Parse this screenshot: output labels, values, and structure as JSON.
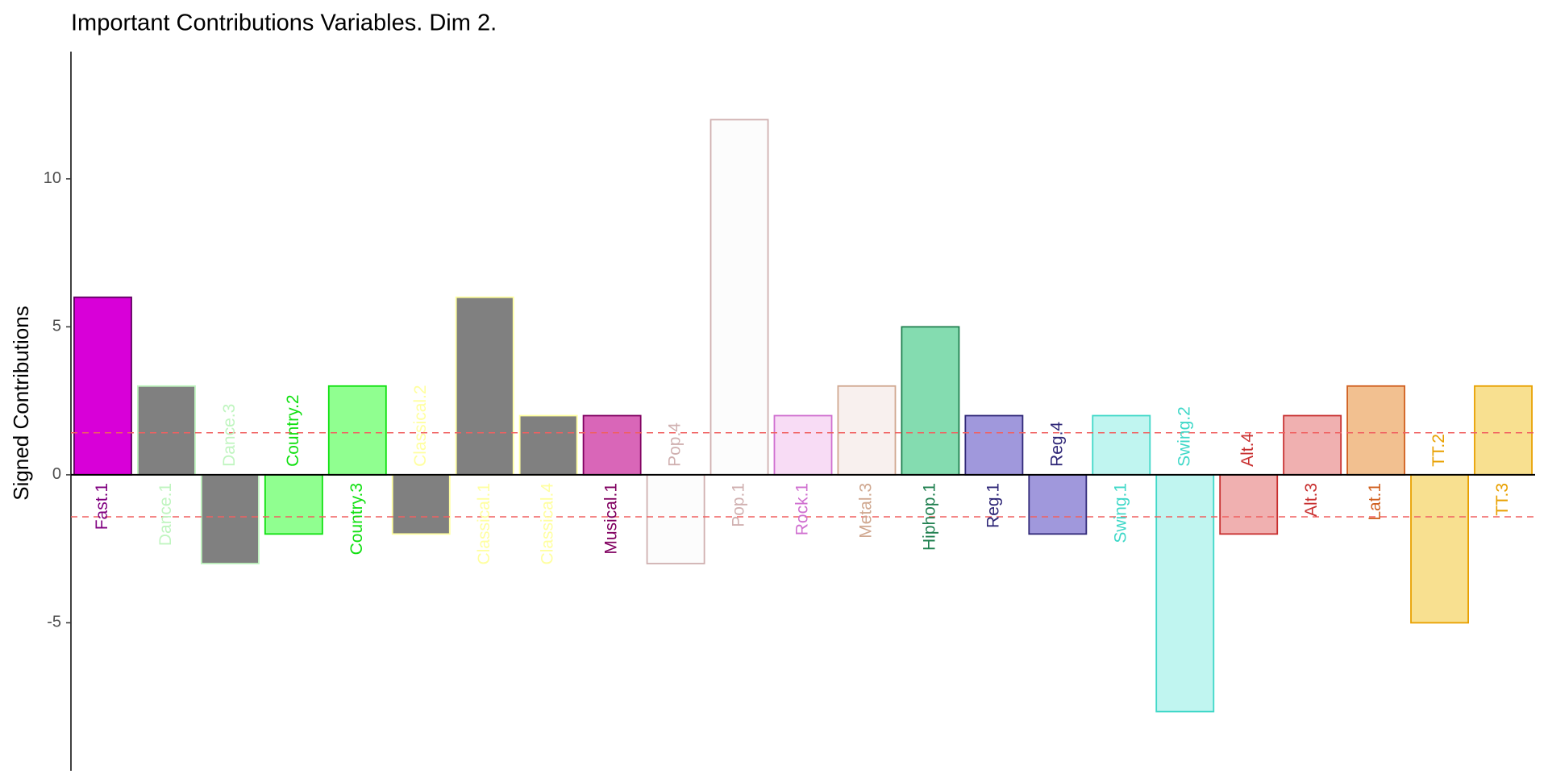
{
  "chart_data": {
    "type": "bar",
    "title": "Important Contributions Variables. Dim 2.",
    "y_label": "Signed Contributions",
    "categories": [
      "Fast.1",
      "Dance.1",
      "Dance.3",
      "Country.2",
      "Country.3",
      "Classical.2",
      "Classical.1",
      "Classical.4",
      "Musical.1",
      "Pop.4",
      "Pop.1",
      "Rock.1",
      "Metal.3",
      "Hiphop.1",
      "Reg.1",
      "Reg.4",
      "Swing.1",
      "Swing.2",
      "Alt.4",
      "Alt.3",
      "Lat.1",
      "TT.2",
      "TT.3"
    ],
    "values": [
      6,
      3,
      -3,
      -2,
      3,
      -2,
      6,
      2,
      2,
      -3,
      12,
      2,
      3,
      5,
      2,
      -2,
      2,
      -8,
      -2,
      2,
      3,
      -5,
      3
    ],
    "colors": [
      "#d800d8",
      "#808080",
      "#808080",
      "#90ff90",
      "#90ff90",
      "#808080",
      "#808080",
      "#808080",
      "#d966b8",
      "#fcfcfc",
      "#fcfcfc",
      "#f8dcf5",
      "#f8f0ee",
      "#84dcb0",
      "#a098dc",
      "#a098dc",
      "#c0f5f0",
      "#c0f5f0",
      "#f0b0b0",
      "#f0b0b0",
      "#f2c090",
      "#f8e090",
      "#f8e090"
    ],
    "edge_colors": [
      "#600060",
      "#c0f5c0",
      "#c0f5c0",
      "#10e010",
      "#10e010",
      "#ffffa0",
      "#ffffa0",
      "#ffffa0",
      "#800060",
      "#d0b0b0",
      "#d0b0b0",
      "#d070d0",
      "#d0a890",
      "#208050",
      "#302878",
      "#302878",
      "#40d8c8",
      "#40d8c8",
      "#c83030",
      "#c83030",
      "#d06020",
      "#e8a000",
      "#e8a000"
    ],
    "label_colors": [
      "#800080",
      "#c0f5c0",
      "#c0f5c0",
      "#10e010",
      "#10e010",
      "#ffffa0",
      "#ffffa0",
      "#ffffa0",
      "#800060",
      "#d0b0b0",
      "#d0b0b0",
      "#d070d0",
      "#d0a890",
      "#208050",
      "#302878",
      "#302878",
      "#40d8c8",
      "#40d8c8",
      "#c83030",
      "#c83030",
      "#d06020",
      "#e8a000",
      "#e8a000"
    ],
    "ylim": [
      -10,
      14.3
    ],
    "yticks": [
      -5,
      0,
      5,
      10
    ],
    "hlines": [
      1.42,
      -1.42
    ],
    "hline_color": "#f06060",
    "grid": false
  }
}
